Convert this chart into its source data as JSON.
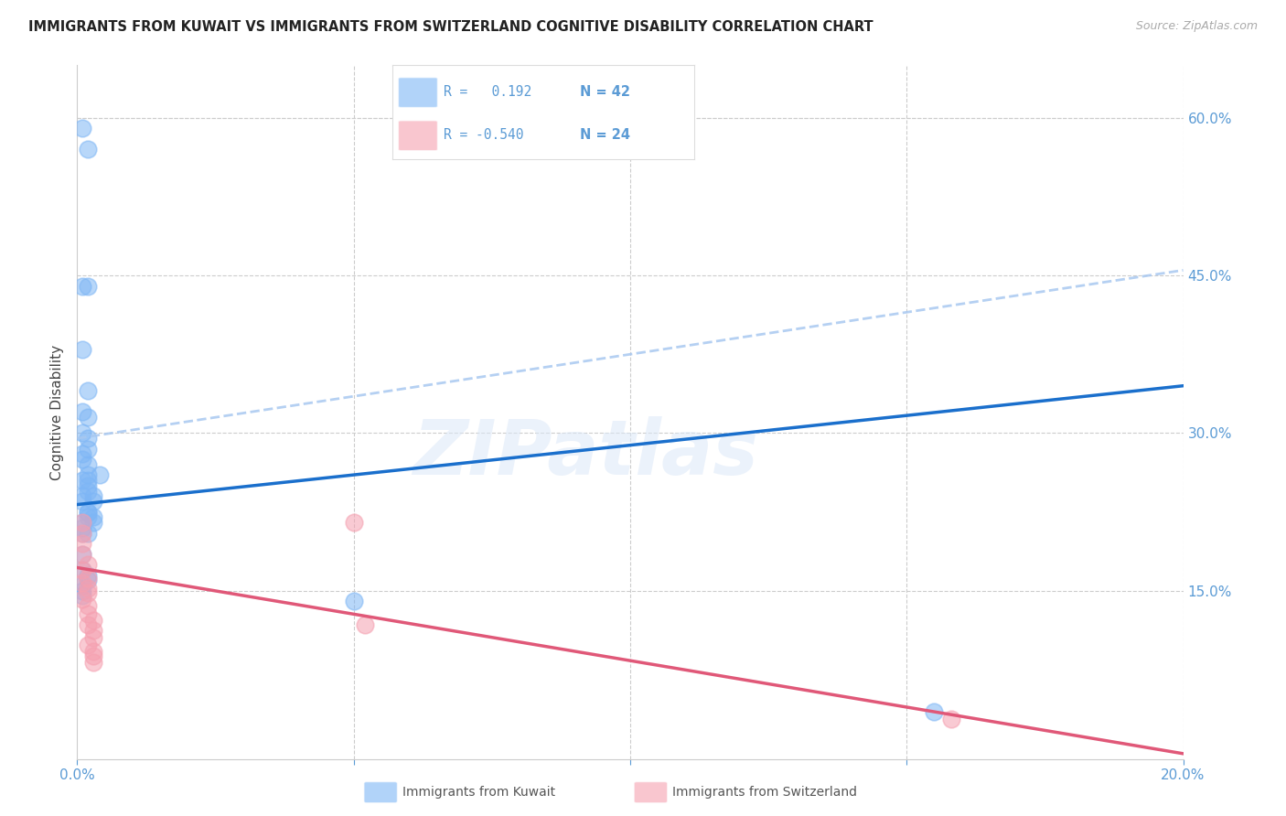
{
  "title": "IMMIGRANTS FROM KUWAIT VS IMMIGRANTS FROM SWITZERLAND COGNITIVE DISABILITY CORRELATION CHART",
  "source": "Source: ZipAtlas.com",
  "ylabel": "Cognitive Disability",
  "xlim": [
    0.0,
    0.2
  ],
  "ylim": [
    -0.01,
    0.65
  ],
  "xtick_positions": [
    0.0,
    0.05,
    0.1,
    0.15,
    0.2
  ],
  "xtick_labels": [
    "0.0%",
    "",
    "",
    "",
    "20.0%"
  ],
  "yticks_right": [
    0.15,
    0.3,
    0.45,
    0.6
  ],
  "ytick_labels_right": [
    "15.0%",
    "30.0%",
    "45.0%",
    "60.0%"
  ],
  "grid_color": "#cccccc",
  "background_color": "#ffffff",
  "kuwait_color": "#7eb6f5",
  "kuwait_edge_color": "#5a9de0",
  "switzerland_color": "#f5a0b0",
  "switzerland_edge_color": "#e06080",
  "kuwait_R": 0.192,
  "kuwait_N": 42,
  "switzerland_R": -0.54,
  "switzerland_N": 24,
  "kuwait_label": "Immigrants from Kuwait",
  "switzerland_label": "Immigrants from Switzerland",
  "axis_label_color": "#5b9bd5",
  "tick_label_color": "#5b9bd5",
  "watermark_text": "ZIPatlas",
  "trend_blue": "#1a6fcc",
  "trend_pink": "#e05878",
  "trend_dashed": "#a8c8f0",
  "kuwait_x": [
    0.001,
    0.002,
    0.001,
    0.001,
    0.002,
    0.001,
    0.002,
    0.001,
    0.002,
    0.002,
    0.001,
    0.001,
    0.002,
    0.002,
    0.001,
    0.002,
    0.002,
    0.001,
    0.001,
    0.002,
    0.002,
    0.001,
    0.001,
    0.002,
    0.003,
    0.003,
    0.002,
    0.004,
    0.003,
    0.003,
    0.001,
    0.002,
    0.002,
    0.001,
    0.001,
    0.001,
    0.05,
    0.002,
    0.002,
    0.001,
    0.001,
    0.155
  ],
  "kuwait_y": [
    0.59,
    0.57,
    0.38,
    0.44,
    0.34,
    0.32,
    0.315,
    0.3,
    0.295,
    0.285,
    0.28,
    0.275,
    0.27,
    0.26,
    0.255,
    0.25,
    0.245,
    0.24,
    0.235,
    0.225,
    0.22,
    0.215,
    0.21,
    0.205,
    0.24,
    0.235,
    0.225,
    0.26,
    0.22,
    0.215,
    0.17,
    0.165,
    0.16,
    0.155,
    0.15,
    0.145,
    0.14,
    0.44,
    0.255,
    0.205,
    0.185,
    0.035
  ],
  "switzerland_x": [
    0.001,
    0.001,
    0.001,
    0.001,
    0.002,
    0.001,
    0.002,
    0.001,
    0.002,
    0.002,
    0.001,
    0.002,
    0.002,
    0.003,
    0.002,
    0.003,
    0.003,
    0.002,
    0.05,
    0.052,
    0.003,
    0.003,
    0.003,
    0.158
  ],
  "switzerland_y": [
    0.215,
    0.205,
    0.195,
    0.185,
    0.175,
    0.17,
    0.162,
    0.158,
    0.152,
    0.148,
    0.142,
    0.136,
    0.128,
    0.122,
    0.118,
    0.112,
    0.105,
    0.098,
    0.215,
    0.118,
    0.092,
    0.088,
    0.082,
    0.028
  ],
  "blue_trend_x0": 0.0,
  "blue_trend_y0": 0.232,
  "blue_trend_x1": 0.2,
  "blue_trend_y1": 0.345,
  "pink_trend_x0": 0.0,
  "pink_trend_y0": 0.172,
  "pink_trend_x1": 0.2,
  "pink_trend_y1": -0.005,
  "dashed_trend_x0": 0.0,
  "dashed_trend_y0": 0.295,
  "dashed_trend_x1": 0.2,
  "dashed_trend_y1": 0.455
}
